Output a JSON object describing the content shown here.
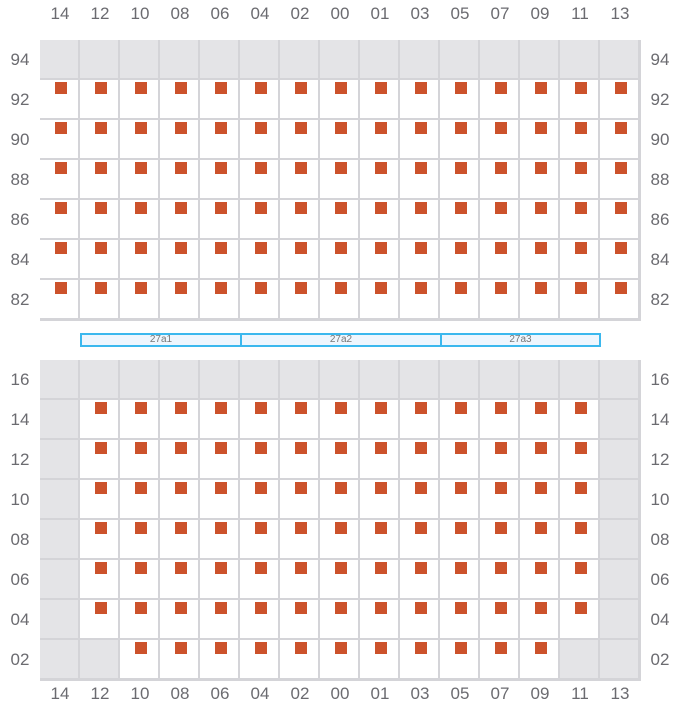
{
  "colors": {
    "seat": "#cc522b",
    "blocked": "#e4e4e7",
    "zone_border": "#3bb8ee"
  },
  "columns": [
    "14",
    "12",
    "10",
    "08",
    "06",
    "04",
    "02",
    "00",
    "01",
    "03",
    "05",
    "07",
    "09",
    "11",
    "13"
  ],
  "zones": [
    {
      "label": "27a1",
      "columns": [
        "12",
        "10",
        "08",
        "06"
      ]
    },
    {
      "label": "27a2",
      "columns": [
        "04",
        "02",
        "00",
        "01",
        "03"
      ]
    },
    {
      "label": "27a3",
      "columns": [
        "05",
        "07",
        "09",
        "11"
      ]
    }
  ],
  "legend_states": {
    "S": "seat",
    "X": "blocked"
  },
  "sections": [
    {
      "rows": [
        {
          "label": "94",
          "cells": "XXXXXXXXXXXXXXX"
        },
        {
          "label": "92",
          "cells": "SSSSSSSSSSSSSSS"
        },
        {
          "label": "90",
          "cells": "SSSSSSSSSSSSSSS"
        },
        {
          "label": "88",
          "cells": "SSSSSSSSSSSSSSS"
        },
        {
          "label": "86",
          "cells": "SSSSSSSSSSSSSSS"
        },
        {
          "label": "84",
          "cells": "SSSSSSSSSSSSSSS"
        },
        {
          "label": "82",
          "cells": "SSSSSSSSSSSSSSS"
        }
      ]
    },
    {
      "rows": [
        {
          "label": "16",
          "cells": "XXXXXXXXXXXXXXX"
        },
        {
          "label": "14",
          "cells": "XSSSSSSSSSSSSSX"
        },
        {
          "label": "12",
          "cells": "XSSSSSSSSSSSSSX"
        },
        {
          "label": "10",
          "cells": "XSSSSSSSSSSSSSX"
        },
        {
          "label": "08",
          "cells": "XSSSSSSSSSSSSSX"
        },
        {
          "label": "06",
          "cells": "XSSSSSSSSSSSSSX"
        },
        {
          "label": "04",
          "cells": "XSSSSSSSSSSSSSX"
        },
        {
          "label": "02",
          "cells": "XXSSSSSSSSSSSXX"
        }
      ]
    }
  ]
}
